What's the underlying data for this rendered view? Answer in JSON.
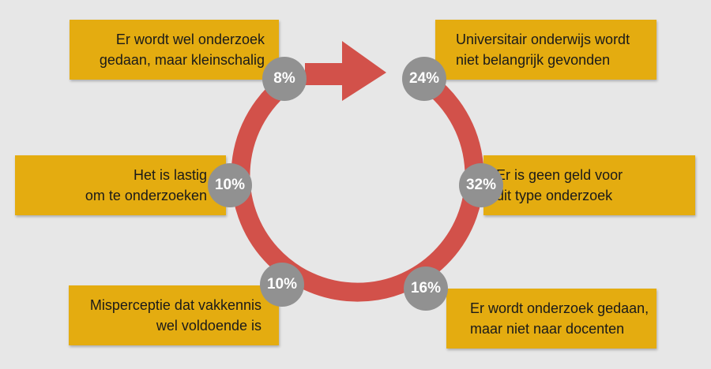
{
  "colors": {
    "background": "#e7e7e7",
    "box": "#e4ac10",
    "ring": "#d2514a",
    "badge": "#919191",
    "badge_text": "#ffffff"
  },
  "icons": {
    "ring_arrow": "circular-arrow-icon"
  },
  "segments": [
    {
      "percent": "8%",
      "lines": [
        "Er wordt wel onderzoek",
        "gedaan, maar kleinschalig"
      ]
    },
    {
      "percent": "24%",
      "lines": [
        "Universitair onderwijs wordt",
        "niet belangrijk gevonden"
      ]
    },
    {
      "percent": "10%",
      "lines": [
        "Het is lastig",
        "om te onderzoeken"
      ]
    },
    {
      "percent": "32%",
      "lines": [
        "Er is geen geld voor",
        "dit type onderzoek"
      ]
    },
    {
      "percent": "10%",
      "lines": [
        "Misperceptie dat vakkennis",
        "wel voldoende is"
      ]
    },
    {
      "percent": "16%",
      "lines": [
        "Er wordt onderzoek gedaan,",
        "maar niet naar docenten"
      ]
    }
  ]
}
